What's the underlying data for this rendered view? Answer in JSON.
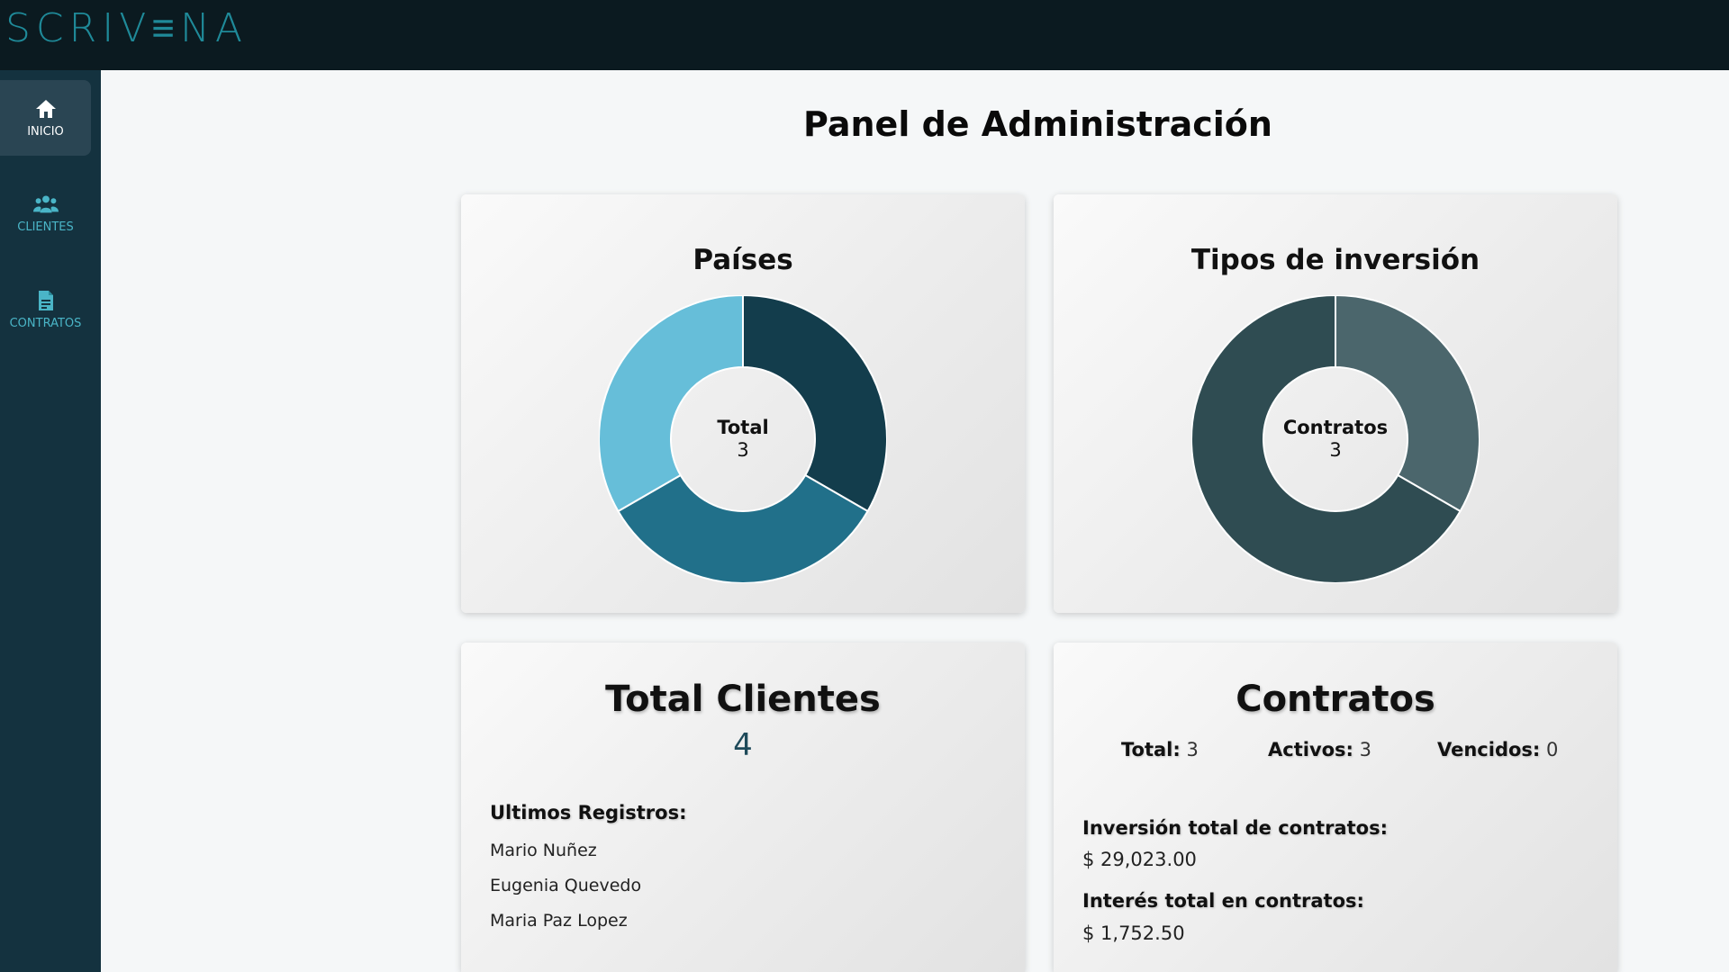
{
  "app": {
    "logo": "SCRIV≡NA"
  },
  "sidebar": {
    "items": [
      {
        "label": "INICIO",
        "icon": "home-icon",
        "active": true
      },
      {
        "label": "CLIENTES",
        "icon": "users-icon",
        "active": false
      },
      {
        "label": "CONTRATOS",
        "icon": "document-icon",
        "active": false
      }
    ]
  },
  "page": {
    "title": "Panel de Administración"
  },
  "paises": {
    "title": "Países",
    "center_label": "Total",
    "center_value": "3"
  },
  "tipos": {
    "title": "Tipos de inversión",
    "center_label": "Contratos",
    "center_value": "3"
  },
  "clientes": {
    "title": "Total Clientes",
    "total": "4",
    "recent_heading": "Ultimos Registros:",
    "recent": [
      "Mario Nuñez",
      "Eugenia Quevedo",
      "Maria Paz Lopez"
    ]
  },
  "contratos": {
    "title": "Contratos",
    "total_label": "Total:",
    "total_value": "3",
    "activos_label": "Activos:",
    "activos_value": "3",
    "vencidos_label": "Vencidos:",
    "vencidos_value": "0",
    "inversion_label": "Inversión total de contratos:",
    "inversion_value": "$ 29,023.00",
    "interes_label": "Interés total en contratos:",
    "interes_value": "$ 1,752.50"
  },
  "chart_data": [
    {
      "type": "pie",
      "title": "Países",
      "values": [
        1,
        1,
        1
      ],
      "colors": [
        "#133d4c",
        "#21708a",
        "#66bed9"
      ]
    },
    {
      "type": "pie",
      "title": "Tipos de inversión",
      "values": [
        1,
        2
      ],
      "colors": [
        "#4b666c",
        "#2f4c52"
      ]
    }
  ]
}
